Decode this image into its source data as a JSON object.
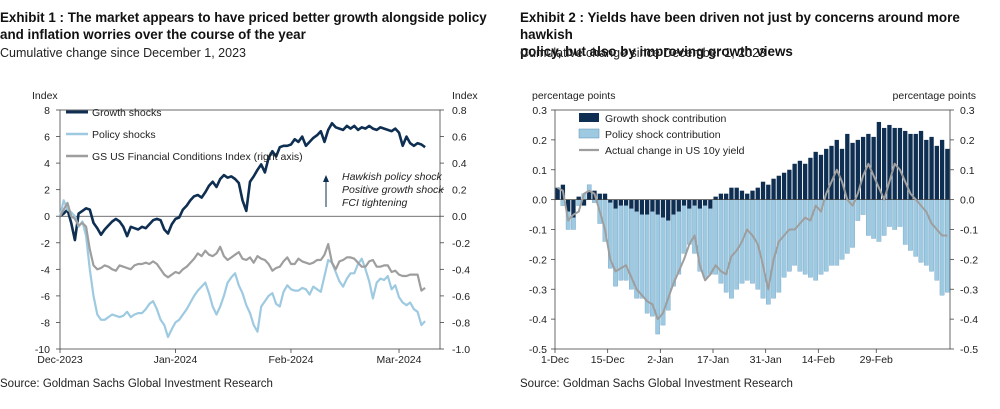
{
  "exhibits": [
    {
      "title_line1": "Exhibit 1 : The market appears to have priced better growth alongside policy",
      "title_line2": "and inflation worries over the course of the year",
      "subtitle": "Cumulative change since December 1, 2023",
      "source": "Source: Goldman Sachs Global Investment Research"
    },
    {
      "title_line1": "Exhibit 2 : Yields have been driven not just by concerns around more hawkish",
      "title_line2": "policy, but also by improving growth views",
      "subtitle": "Cumulative change since December 1, 2023",
      "source": "Source: Goldman Sachs Global Investment Research"
    }
  ],
  "chart_data": [
    {
      "type": "line",
      "ylabel": "Index",
      "y2label": "Index",
      "ylim": [
        -10,
        8
      ],
      "y2lim": [
        -1.0,
        0.8
      ],
      "yticks": [
        -10,
        -8,
        -6,
        -4,
        -2,
        0,
        2,
        4,
        6,
        8
      ],
      "y2ticks": [
        "-1.0",
        "-0.8",
        "-0.6",
        "-0.4",
        "-0.2",
        "0.0",
        "0.2",
        "0.4",
        "0.6",
        "0.8"
      ],
      "x_tick_labels": [
        "Dec-2023",
        "Jan-2024",
        "Feb-2024",
        "Mar-2024"
      ],
      "x_tick_days": [
        0,
        31,
        62,
        91
      ],
      "x_range_days": [
        0,
        102
      ],
      "legend_position": "top-left",
      "annotation": [
        "Hawkish policy shock",
        "Positive growth shock",
        "FCI tightening"
      ],
      "colors": {
        "growth": "#0e2f52",
        "policy": "#9ecae1",
        "fci": "#9e9e9e"
      },
      "series": [
        {
          "name": "Growth shocks",
          "axis": "left",
          "x": [
            0,
            1,
            2,
            3,
            4,
            5,
            6,
            7,
            8,
            9,
            10,
            11,
            12,
            13,
            14,
            15,
            16,
            17,
            18,
            19,
            20,
            21,
            22,
            23,
            24,
            25,
            26,
            27,
            28,
            29,
            30,
            31,
            32,
            33,
            34,
            35,
            36,
            37,
            38,
            39,
            40,
            41,
            42,
            43,
            44,
            45,
            46,
            47,
            48,
            49,
            50,
            51,
            52,
            53,
            54,
            55,
            56,
            57,
            58,
            59,
            60,
            61,
            62,
            63,
            64,
            65,
            66,
            67,
            68,
            69,
            70,
            71,
            72,
            73,
            74,
            75,
            76,
            77,
            78,
            79,
            80,
            81,
            82,
            83,
            84,
            85,
            86,
            87,
            88,
            89,
            90,
            91,
            92,
            93,
            94,
            95,
            96,
            97,
            98
          ],
          "y": [
            0,
            0.2,
            0.5,
            -0.5,
            -1.8,
            0.2,
            0.4,
            0.6,
            0.5,
            -0.5,
            -0.9,
            -1.4,
            -1.0,
            -0.7,
            -0.4,
            -0.2,
            -0.4,
            -0.8,
            -1.5,
            -0.8,
            -0.9,
            -1.0,
            -0.8,
            -0.9,
            -0.6,
            -0.3,
            -0.2,
            -0.3,
            -1.0,
            -1.3,
            -0.6,
            -0.2,
            -0.1,
            0.5,
            0.8,
            1.2,
            1.5,
            1.6,
            1.4,
            1.8,
            2.3,
            2.6,
            2.2,
            2.8,
            3.1,
            2.9,
            3.0,
            2.8,
            2.5,
            1.2,
            0.4,
            2.6,
            3.0,
            3.5,
            3.9,
            3.3,
            4.4,
            4.9,
            4.5,
            5.2,
            5.3,
            5.3,
            5.4,
            5.8,
            5.6,
            6.0,
            5.3,
            5.6,
            5.9,
            6.1,
            6.4,
            5.6,
            6.5,
            7.0,
            6.7,
            6.6,
            6.5,
            6.8,
            6.6,
            6.8,
            6.5,
            6.7,
            6.6,
            6.8,
            6.6,
            6.5,
            6.7,
            6.6,
            6.5,
            6.4,
            6.6,
            6.3,
            5.3,
            6.0,
            5.5,
            5.3,
            5.5,
            5.4,
            5.2
          ]
        },
        {
          "name": "Policy shocks",
          "axis": "left",
          "x": [
            0,
            1,
            2,
            3,
            4,
            5,
            6,
            7,
            8,
            9,
            10,
            11,
            12,
            13,
            14,
            15,
            16,
            17,
            18,
            19,
            20,
            21,
            22,
            23,
            24,
            25,
            26,
            27,
            28,
            29,
            30,
            31,
            32,
            33,
            34,
            35,
            36,
            37,
            38,
            39,
            40,
            41,
            42,
            43,
            44,
            45,
            46,
            47,
            48,
            49,
            50,
            51,
            52,
            53,
            54,
            55,
            56,
            57,
            58,
            59,
            60,
            61,
            62,
            63,
            64,
            65,
            66,
            67,
            68,
            69,
            70,
            71,
            72,
            73,
            74,
            75,
            76,
            77,
            78,
            79,
            80,
            81,
            82,
            83,
            84,
            85,
            86,
            87,
            88,
            89,
            90,
            91,
            92,
            93,
            94,
            95,
            96,
            97,
            98
          ],
          "y": [
            0,
            1.2,
            0.5,
            0.3,
            0.0,
            -0.8,
            -0.4,
            -1.5,
            -4.0,
            -6.0,
            -7.4,
            -7.8,
            -7.8,
            -7.6,
            -7.4,
            -7.5,
            -7.6,
            -7.5,
            -7.2,
            -7.6,
            -7.4,
            -7.3,
            -7.3,
            -7.0,
            -6.6,
            -6.4,
            -7.0,
            -7.8,
            -8.2,
            -9.1,
            -8.5,
            -8.0,
            -7.8,
            -7.4,
            -7.0,
            -6.5,
            -6.0,
            -5.6,
            -5.3,
            -5.0,
            -5.8,
            -6.8,
            -7.4,
            -6.8,
            -6.0,
            -5.0,
            -4.6,
            -4.3,
            -5.2,
            -5.8,
            -6.7,
            -7.3,
            -8.2,
            -8.7,
            -6.8,
            -6.4,
            -6.0,
            -5.8,
            -6.6,
            -6.8,
            -5.7,
            -5.2,
            -5.5,
            -5.6,
            -5.6,
            -5.4,
            -5.5,
            -5.9,
            -5.3,
            -5.5,
            -5.7,
            -4.5,
            -3.3,
            -3.5,
            -4.2,
            -4.9,
            -5.3,
            -4.7,
            -4.3,
            -4.3,
            -3.6,
            -3.2,
            -4.0,
            -4.9,
            -6.2,
            -5.0,
            -4.7,
            -4.8,
            -4.5,
            -5.5,
            -5.2,
            -6.1,
            -6.5,
            -6.7,
            -6.5,
            -7.0,
            -7.2,
            -8.2,
            -7.9
          ]
        },
        {
          "name": "GS US Financial Conditions Index (right axis)",
          "axis": "right",
          "x": [
            0,
            1,
            2,
            3,
            4,
            5,
            6,
            7,
            8,
            9,
            10,
            11,
            12,
            13,
            14,
            15,
            16,
            17,
            18,
            19,
            20,
            21,
            22,
            23,
            24,
            25,
            26,
            27,
            28,
            29,
            30,
            31,
            32,
            33,
            34,
            35,
            36,
            37,
            38,
            39,
            40,
            41,
            42,
            43,
            44,
            45,
            46,
            47,
            48,
            49,
            50,
            51,
            52,
            53,
            54,
            55,
            56,
            57,
            58,
            59,
            60,
            61,
            62,
            63,
            64,
            65,
            66,
            67,
            68,
            69,
            70,
            71,
            72,
            73,
            74,
            75,
            76,
            77,
            78,
            79,
            80,
            81,
            82,
            83,
            84,
            85,
            86,
            87,
            88,
            89,
            90,
            91,
            92,
            93,
            94,
            95,
            96,
            97,
            98
          ],
          "y": [
            0,
            0.05,
            0.1,
            0.0,
            -0.02,
            -0.07,
            -0.05,
            -0.08,
            -0.25,
            -0.37,
            -0.4,
            -0.39,
            -0.37,
            -0.38,
            -0.4,
            -0.41,
            -0.37,
            -0.38,
            -0.39,
            -0.4,
            -0.37,
            -0.36,
            -0.36,
            -0.35,
            -0.36,
            -0.34,
            -0.36,
            -0.4,
            -0.44,
            -0.46,
            -0.44,
            -0.42,
            -0.43,
            -0.4,
            -0.38,
            -0.35,
            -0.32,
            -0.28,
            -0.3,
            -0.26,
            -0.29,
            -0.3,
            -0.28,
            -0.23,
            -0.3,
            -0.33,
            -0.31,
            -0.29,
            -0.27,
            -0.32,
            -0.33,
            -0.31,
            -0.35,
            -0.3,
            -0.32,
            -0.33,
            -0.36,
            -0.41,
            -0.39,
            -0.38,
            -0.34,
            -0.31,
            -0.36,
            -0.36,
            -0.32,
            -0.34,
            -0.35,
            -0.36,
            -0.35,
            -0.33,
            -0.33,
            -0.29,
            -0.21,
            -0.35,
            -0.4,
            -0.34,
            -0.33,
            -0.31,
            -0.31,
            -0.32,
            -0.35,
            -0.38,
            -0.38,
            -0.34,
            -0.33,
            -0.38,
            -0.38,
            -0.37,
            -0.37,
            -0.42,
            -0.41,
            -0.44,
            -0.45,
            -0.45,
            -0.44,
            -0.44,
            -0.44,
            -0.56,
            -0.54
          ]
        }
      ]
    },
    {
      "type": "bar",
      "stacked": true,
      "ylabel": "percentage points",
      "y2label": "percentage points",
      "ylim": [
        -0.5,
        0.3
      ],
      "y2lim": [
        -0.5,
        0.3
      ],
      "yticks": [
        "-0.5",
        "-0.4",
        "-0.3",
        "-0.2",
        "-0.1",
        "0.0",
        "0.1",
        "0.2",
        "0.3"
      ],
      "x_tick_labels": [
        "1-Dec",
        "15-Dec",
        "2-Jan",
        "17-Jan",
        "31-Jan",
        "14-Feb",
        "29-Feb"
      ],
      "x_tick_index": [
        0,
        10,
        20,
        30,
        40,
        50,
        61
      ],
      "legend_position": "top-left",
      "colors": {
        "growth": "#0e2f52",
        "policy": "#9ecae1",
        "actual": "#9e9e9e"
      },
      "series": [
        {
          "name": "Growth shock contribution",
          "values": [
            0.04,
            0.05,
            -0.04,
            -0.06,
            0.01,
            -0.02,
            0.03,
            0.03,
            0.02,
            0.02,
            -0.01,
            -0.03,
            -0.02,
            -0.02,
            -0.03,
            -0.04,
            -0.05,
            -0.05,
            -0.04,
            -0.05,
            -0.06,
            -0.07,
            -0.05,
            -0.04,
            -0.02,
            -0.03,
            -0.02,
            -0.03,
            -0.02,
            -0.03,
            0.01,
            0.02,
            0.02,
            0.04,
            0.04,
            0.03,
            0.02,
            0.03,
            0.04,
            0.06,
            0.05,
            0.07,
            0.08,
            0.09,
            0.1,
            0.12,
            0.13,
            0.12,
            0.14,
            0.16,
            0.15,
            0.17,
            0.18,
            0.2,
            0.17,
            0.22,
            0.19,
            0.2,
            0.21,
            0.22,
            0.21,
            0.26,
            0.24,
            0.25,
            0.24,
            0.24,
            0.23,
            0.22,
            0.22,
            0.23,
            0.2,
            0.21,
            0.18,
            0.2,
            0.17
          ]
        },
        {
          "name": "Policy shock contribution",
          "values": [
            0.0,
            -0.02,
            -0.06,
            -0.04,
            -0.02,
            0.02,
            0.02,
            -0.01,
            -0.08,
            -0.14,
            -0.22,
            -0.26,
            -0.25,
            -0.25,
            -0.27,
            -0.29,
            -0.28,
            -0.33,
            -0.35,
            -0.4,
            -0.36,
            -0.3,
            -0.24,
            -0.21,
            -0.16,
            -0.12,
            -0.16,
            -0.21,
            -0.24,
            -0.22,
            -0.25,
            -0.28,
            -0.31,
            -0.33,
            -0.3,
            -0.28,
            -0.27,
            -0.28,
            -0.3,
            -0.33,
            -0.35,
            -0.33,
            -0.31,
            -0.26,
            -0.24,
            -0.22,
            -0.24,
            -0.25,
            -0.26,
            -0.27,
            -0.25,
            -0.24,
            -0.22,
            -0.22,
            -0.2,
            -0.18,
            -0.16,
            -0.07,
            -0.05,
            -0.12,
            -0.13,
            -0.14,
            -0.12,
            -0.09,
            -0.1,
            -0.09,
            -0.15,
            -0.17,
            -0.19,
            -0.21,
            -0.22,
            -0.24,
            -0.27,
            -0.32,
            -0.31
          ]
        },
        {
          "name": "Actual change in US 10y yield",
          "type": "line",
          "values": [
            0.04,
            0.03,
            -0.07,
            -0.05,
            -0.04,
            0.02,
            0.03,
            0.02,
            -0.04,
            -0.1,
            -0.2,
            -0.24,
            -0.23,
            -0.22,
            -0.26,
            -0.3,
            -0.32,
            -0.34,
            -0.35,
            -0.4,
            -0.38,
            -0.33,
            -0.28,
            -0.24,
            -0.2,
            -0.15,
            -0.12,
            -0.22,
            -0.27,
            -0.25,
            -0.22,
            -0.24,
            -0.25,
            -0.19,
            -0.17,
            -0.14,
            -0.1,
            -0.12,
            -0.15,
            -0.22,
            -0.3,
            -0.2,
            -0.14,
            -0.12,
            -0.1,
            -0.1,
            -0.08,
            -0.06,
            -0.07,
            -0.02,
            -0.04,
            0.02,
            0.06,
            0.1,
            0.06,
            0.0,
            -0.02,
            0.02,
            0.08,
            0.12,
            0.08,
            0.04,
            0.0,
            0.06,
            0.12,
            0.1,
            0.06,
            0.02,
            0.0,
            -0.02,
            -0.04,
            -0.08,
            -0.1,
            -0.12,
            -0.12
          ]
        }
      ]
    }
  ]
}
